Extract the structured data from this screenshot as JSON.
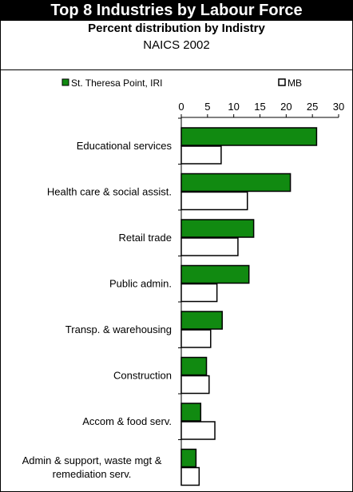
{
  "header": {
    "title": "Top 8 Industries by Labour Force",
    "subtitle": "Percent distribution by Indistry",
    "classification": "NAICS 2002"
  },
  "colors": {
    "series1_fill": "#118a11",
    "series2_fill": "#ffffff",
    "outline": "#000000",
    "banner_bg": "#000000",
    "banner_text": "#ffffff"
  },
  "chart_data": {
    "type": "bar",
    "orientation": "horizontal",
    "categories": [
      "Educational services",
      "Health care & social assist.",
      "Retail trade",
      "Public admin.",
      "Transp. & warehousing",
      "Construction",
      "Accom & food serv.",
      [
        "Admin & support, waste mgt &",
        "remediation serv."
      ]
    ],
    "series": [
      {
        "name": "St. Theresa Point, IRI",
        "values": [
          25.8,
          20.8,
          13.8,
          12.9,
          7.8,
          4.8,
          3.7,
          2.8
        ]
      },
      {
        "name": "MB",
        "values": [
          7.6,
          12.6,
          10.8,
          6.8,
          5.6,
          5.3,
          6.4,
          3.4
        ]
      }
    ],
    "xlim": [
      0,
      30
    ],
    "xticks": [
      0,
      5,
      10,
      15,
      20,
      25,
      30
    ],
    "axis_position": "top",
    "legend_position": "top",
    "grid": false
  }
}
